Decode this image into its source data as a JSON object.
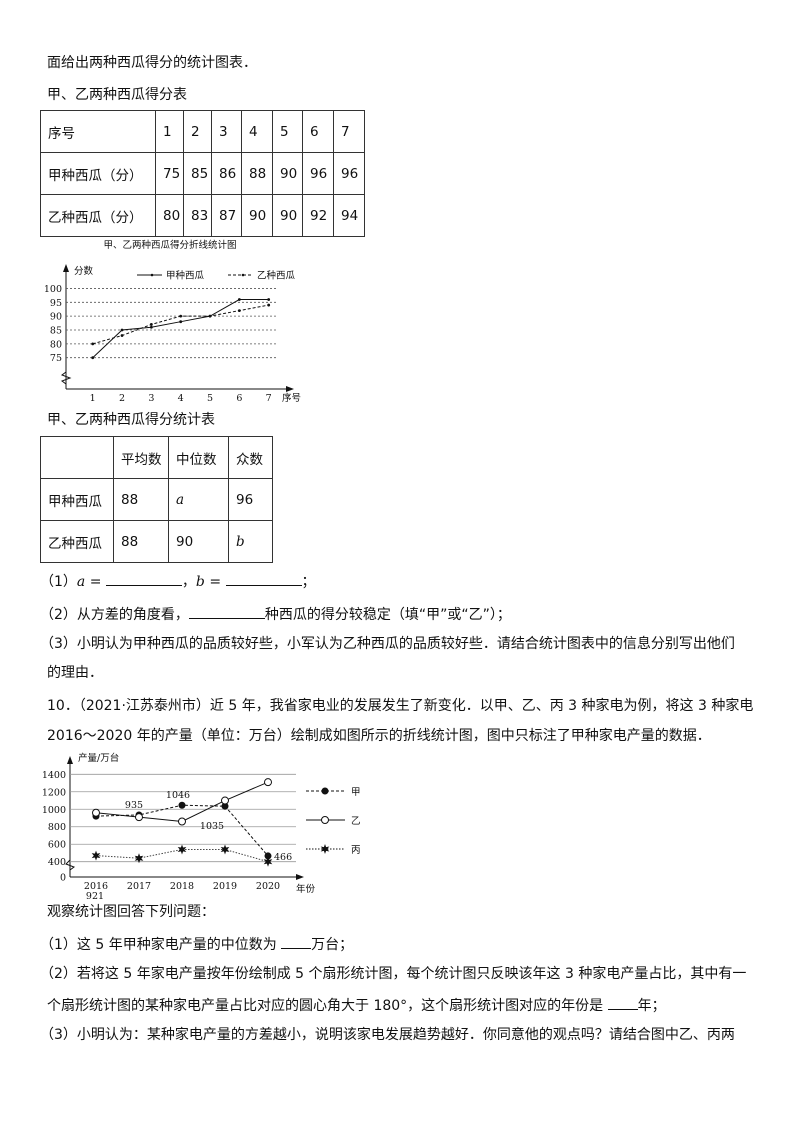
{
  "intro": "面给出两种西瓜得分的统计图表．",
  "table1": {
    "caption": "甲、乙两种西瓜得分表",
    "header": [
      "序号",
      "1",
      "2",
      "3",
      "4",
      "5",
      "6",
      "7"
    ],
    "rows": [
      [
        "甲种西瓜（分）",
        "75",
        "85",
        "86",
        "88",
        "90",
        "96",
        "96"
      ],
      [
        "乙种西瓜（分）",
        "80",
        "83",
        "87",
        "90",
        "90",
        "92",
        "94"
      ]
    ]
  },
  "chart_data": [
    {
      "type": "line",
      "title": "甲、乙两种西瓜得分折线统计图",
      "xlabel": "序号",
      "ylabel": "分数",
      "x": [
        1,
        2,
        3,
        4,
        5,
        6,
        7
      ],
      "yticks": [
        75,
        80,
        85,
        90,
        95,
        100
      ],
      "ylim": [
        75,
        100
      ],
      "y_axis_break": true,
      "grid": "horizontal dashed",
      "legend_placement": "top",
      "series": [
        {
          "name": "甲种西瓜",
          "style": "solid",
          "values": [
            75,
            85,
            86,
            88,
            90,
            96,
            96
          ]
        },
        {
          "name": "乙种西瓜",
          "style": "dashed",
          "values": [
            80,
            83,
            87,
            90,
            90,
            92,
            94
          ]
        }
      ]
    },
    {
      "type": "line",
      "title": "",
      "xlabel": "年份",
      "ylabel": "产量/万台",
      "x": [
        "2016",
        "2017",
        "2018",
        "2019",
        "2020"
      ],
      "yticks": [
        0,
        400,
        600,
        800,
        1000,
        1200,
        1400
      ],
      "ylim": [
        400,
        1400
      ],
      "y_axis_break": true,
      "grid": "horizontal",
      "legend_placement": "right",
      "series": [
        {
          "name": "甲",
          "style": "dashed",
          "marker": "filled-circle",
          "values": [
            921,
            935,
            1046,
            1035,
            466
          ],
          "labels": [
            "921",
            "935",
            "1046",
            "1035",
            "466"
          ]
        },
        {
          "name": "乙",
          "style": "solid",
          "marker": "open-circle",
          "values": [
            960,
            910,
            860,
            1100,
            1310
          ]
        },
        {
          "name": "丙",
          "style": "dotted",
          "marker": "star",
          "values": [
            470,
            440,
            540,
            540,
            400
          ]
        }
      ]
    }
  ],
  "table2": {
    "caption": "甲、乙两种西瓜得分统计表",
    "header": [
      "",
      "平均数",
      "中位数",
      "众数"
    ],
    "rows": [
      [
        "甲种西瓜",
        "88",
        "a",
        "96"
      ],
      [
        "乙种西瓜",
        "88",
        "90",
        "b"
      ]
    ]
  },
  "q9": {
    "q1_prefix": "（1）",
    "q1_a": "a",
    "q1_eq": " = ",
    "q1_sep": "，",
    "q1_b": "b",
    "q1_end": "；",
    "q2_prefix": "（2）从方差的角度看，",
    "q2_suffix": "种西瓜的得分较稳定（填“甲”或“乙”）；",
    "q3_line1": "（3）小明认为甲种西瓜的品质较好些，小军认为乙种西瓜的品质较好些．请结合统计图表中的信息分别写出他们",
    "q3_line2": "的理由．"
  },
  "q10": {
    "line1": "10．（2021·江苏泰州市）近 5 年，我省家电业的发展发生了新变化．以甲、乙、丙 3 种家电为例，将这 3 种家电",
    "line2": "2016～2020 年的产量（单位：万台）绘制成如图所示的折线统计图，图中只标注了甲种家电产量的数据．",
    "observe": "观察统计图回答下列问题：",
    "q1_prefix": "（1）这 5 年甲种家电产量的中位数为 ",
    "q1_suffix": "万台；",
    "q2_line1": "（2）若将这 5 年家电产量按年份绘制成 5 个扇形统计图，每个统计图只反映该年这 3 种家电产量占比，其中有一",
    "q2_line2_prefix": "个扇形统计图的某种家电产量占比对应的圆心角大于 180°，这个扇形统计图对应的年份是 ",
    "q2_line2_suffix": "年；",
    "q3_line1": "（3）小明认为：某种家电产量的方差越小，说明该家电发展趋势越好．你同意他的观点吗？请结合图中乙、丙两"
  }
}
